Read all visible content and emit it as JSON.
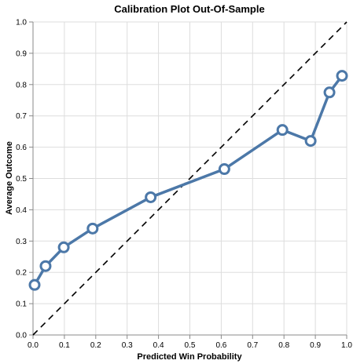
{
  "chart_data": {
    "type": "line",
    "title": "Calibration Plot Out-Of-Sample",
    "xlabel": "Predicted Win Probability",
    "ylabel": "Average Outcome",
    "xlim": [
      0,
      1
    ],
    "ylim": [
      0,
      1
    ],
    "x_ticks": [
      "0.0",
      "0.1",
      "0.2",
      "0.3",
      "0.4",
      "0.5",
      "0.6",
      "0.7",
      "0.8",
      "0.9",
      "1.0"
    ],
    "y_ticks": [
      "0.0",
      "0.1",
      "0.2",
      "0.3",
      "0.4",
      "0.5",
      "0.6",
      "0.7",
      "0.8",
      "0.9",
      "1.0"
    ],
    "grid": true,
    "series": [
      {
        "x": [
          0.005,
          0.04,
          0.098,
          0.19,
          0.375,
          0.61,
          0.795,
          0.885,
          0.945,
          0.985
        ],
        "y": [
          0.16,
          0.22,
          0.28,
          0.34,
          0.44,
          0.53,
          0.655,
          0.62,
          0.775,
          0.828
        ],
        "color": "#4c78a8"
      }
    ],
    "reference_line": {
      "x": [
        0,
        1
      ],
      "y": [
        0,
        1
      ],
      "style": "dashed",
      "color": "#000000"
    }
  }
}
